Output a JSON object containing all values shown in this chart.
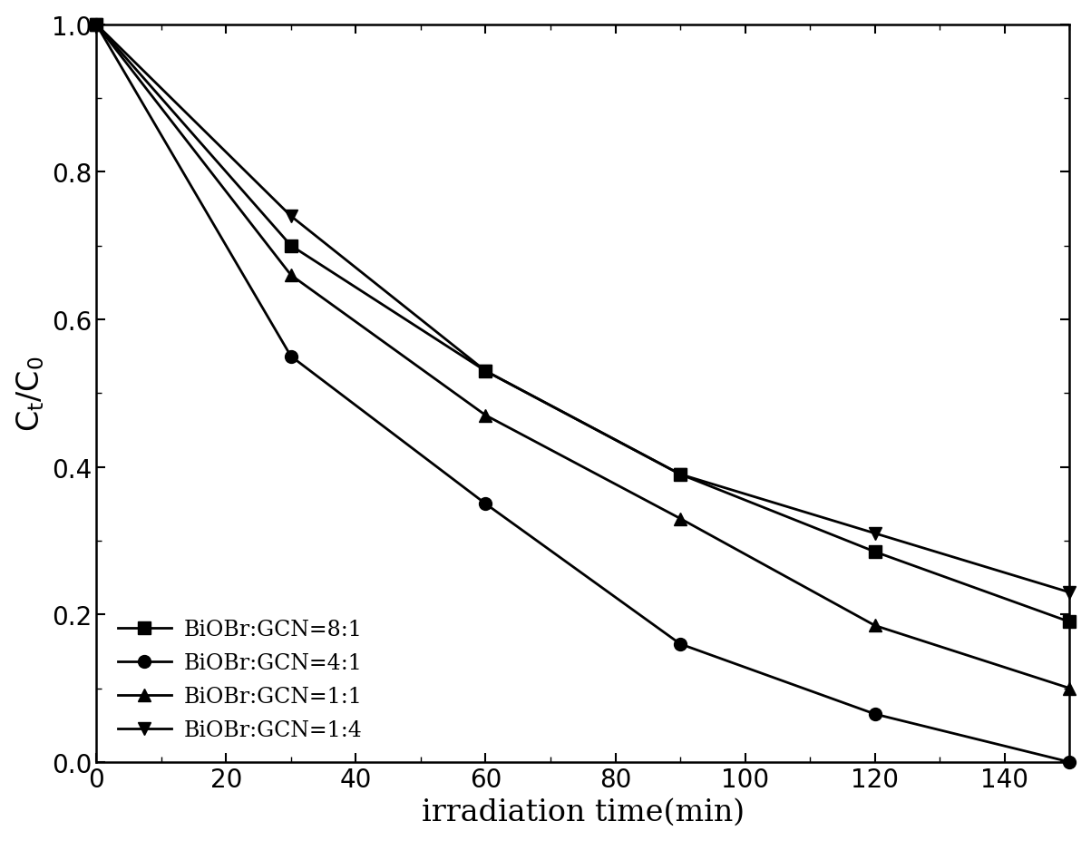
{
  "series": [
    {
      "label": "BiOBr:GCN=8:1",
      "marker": "s",
      "x": [
        0,
        30,
        60,
        90,
        120,
        150
      ],
      "y": [
        1.0,
        0.7,
        0.53,
        0.39,
        0.285,
        0.19
      ]
    },
    {
      "label": "BiOBr:GCN=4:1",
      "marker": "o",
      "x": [
        0,
        30,
        60,
        90,
        120,
        150
      ],
      "y": [
        1.0,
        0.55,
        0.35,
        0.16,
        0.065,
        0.0
      ]
    },
    {
      "label": "BiOBr:GCN=1:1",
      "marker": "^",
      "x": [
        0,
        30,
        60,
        90,
        120,
        150
      ],
      "y": [
        1.0,
        0.66,
        0.47,
        0.33,
        0.185,
        0.1
      ]
    },
    {
      "label": "BiOBr:GCN=1:4",
      "marker": "v",
      "x": [
        0,
        30,
        60,
        90,
        120,
        150
      ],
      "y": [
        1.0,
        0.74,
        0.53,
        0.39,
        0.31,
        0.23
      ]
    }
  ],
  "xlabel": "irradiation time(min)",
  "xlim": [
    0,
    150
  ],
  "ylim": [
    0.0,
    1.0
  ],
  "xticks": [
    0,
    20,
    40,
    60,
    80,
    100,
    120,
    140
  ],
  "yticks": [
    0.0,
    0.2,
    0.4,
    0.6,
    0.8,
    1.0
  ],
  "line_color": "#000000",
  "background_color": "#ffffff",
  "linewidth": 2.0,
  "markersize": 10,
  "legend_fontsize": 17,
  "axis_label_fontsize": 24,
  "tick_fontsize": 20,
  "spine_linewidth": 1.8
}
